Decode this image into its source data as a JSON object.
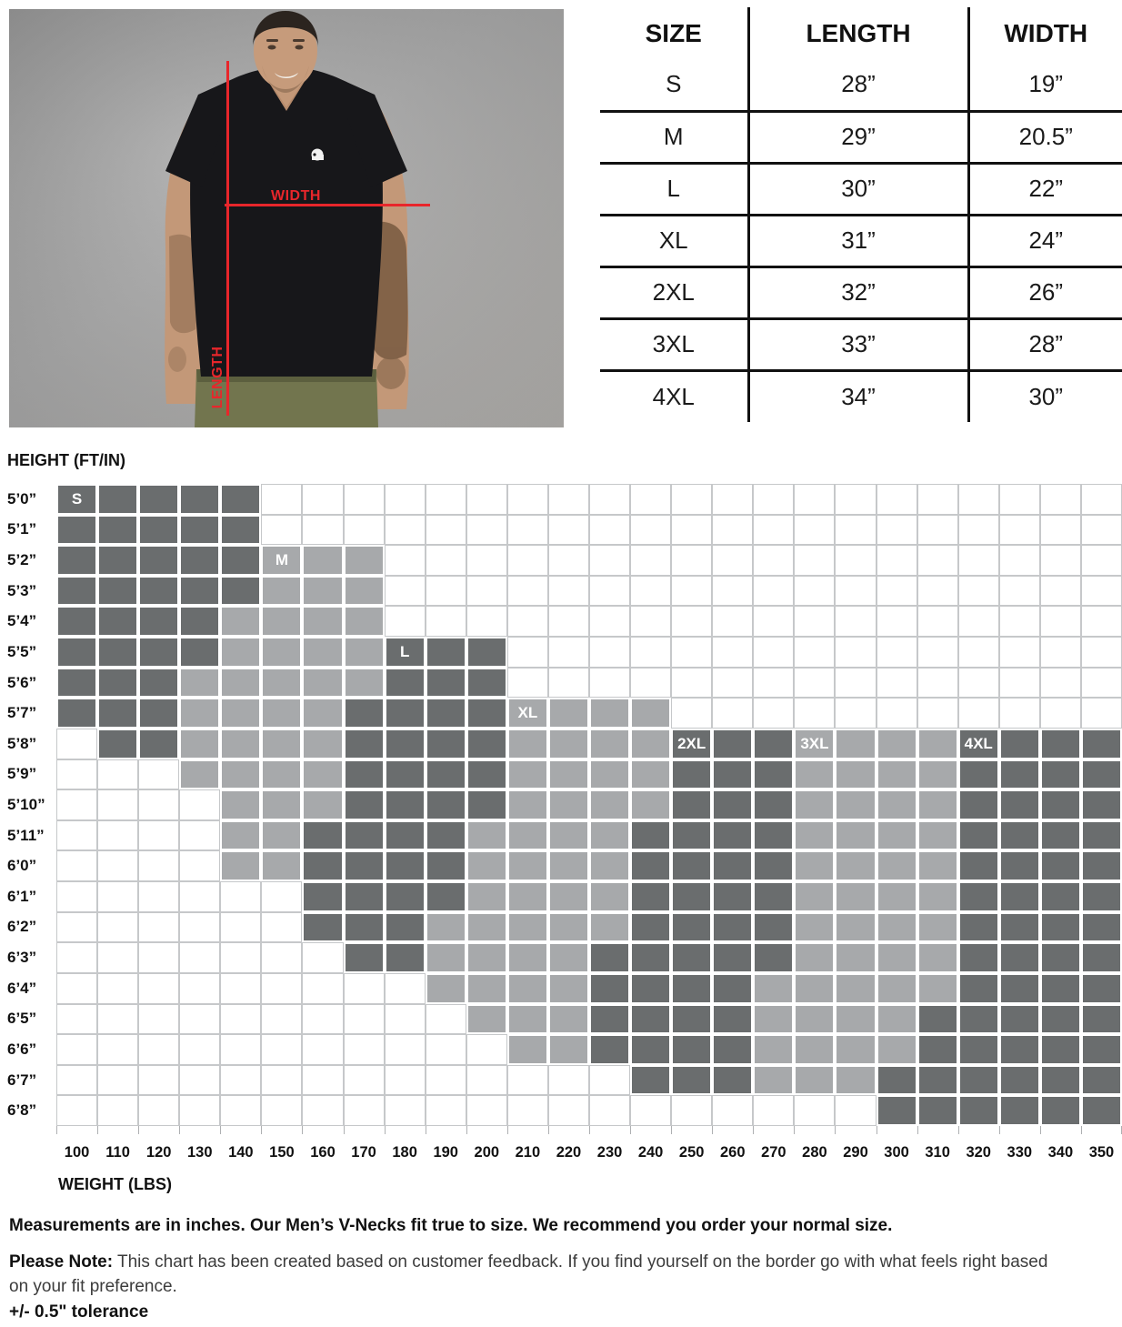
{
  "photo": {
    "width_label": "WIDTH",
    "length_label": "LENGTH",
    "accent_color": "#e8262b"
  },
  "size_table": {
    "headers": [
      "SIZE",
      "LENGTH",
      "WIDTH"
    ],
    "rows": [
      [
        "S",
        "28”",
        "19”"
      ],
      [
        "M",
        "29”",
        "20.5”"
      ],
      [
        "L",
        "30”",
        "22”"
      ],
      [
        "XL",
        "31”",
        "24”"
      ],
      [
        "2XL",
        "32”",
        "26”"
      ],
      [
        "3XL",
        "33”",
        "28”"
      ],
      [
        "4XL",
        "34”",
        "30”"
      ]
    ]
  },
  "chart_data": {
    "type": "heatmap",
    "y_axis_title": "HEIGHT (FT/IN)",
    "x_axis_title": "WEIGHT (LBS)",
    "heights": [
      "5’0”",
      "5’1”",
      "5’2”",
      "5’3”",
      "5’4”",
      "5’5”",
      "5’6”",
      "5’7”",
      "5’8”",
      "5’9”",
      "5’10”",
      "5’11”",
      "6’0”",
      "6’1”",
      "6’2”",
      "6’3”",
      "6’4”",
      "6’5”",
      "6’6”",
      "6’7”",
      "6’8”"
    ],
    "weights": [
      100,
      110,
      120,
      130,
      140,
      150,
      160,
      170,
      180,
      190,
      200,
      210,
      220,
      230,
      240,
      250,
      260,
      270,
      280,
      290,
      300,
      310,
      320,
      330,
      340,
      350
    ],
    "cell_colors": {
      "D": "#6a6d6e",
      "L": "#a7a9ab",
      "W": "#ffffff"
    },
    "grid_line_color": "#c6c8ca",
    "legend": "D = solid size zone (dark gray), L = border zone (light gray), . = not recommended (white)",
    "rows": [
      "DDDDD.....................",
      "DDDDD.....................",
      "DDDDDLLL..................",
      "DDDDDLLL..................",
      "DDDDLLLL..................",
      "DDDDLLLLDDD...............",
      "DDDLLLLLDDD...............",
      "DDDLLLLDDDDLLLL...........",
      ".DDLLLLDDDDLLLLDDDLLLLDDDD",
      "...LLLLDDDDLLLLDDDLLLLDDDD",
      "....LLLDDDDLLLLDDDLLLLDDDD",
      "....LLDDDDLLLLDDDDLLLLDDDD",
      "....LLDDDDLLLLDDDDLLLLDDDD",
      "......DDDDLLLLDDDDLLLLDDDD",
      "......DDDLLLLLDDDDLLLLDDDD",
      ".......DDLLLLDDDDDLLLLDDDD",
      ".........LLLLDDDDLLLLLDDDD",
      "..........LLLDDDDLLLLDDDDD",
      "...........LLDDDDLLLLDDDDD",
      "..............DDDLLLDDDDDD",
      "....................DDDDDD"
    ],
    "size_labels": [
      {
        "text": "S",
        "row": 0,
        "col": 0
      },
      {
        "text": "M",
        "row": 2,
        "col": 5
      },
      {
        "text": "L",
        "row": 5,
        "col": 8
      },
      {
        "text": "XL",
        "row": 7,
        "col": 11
      },
      {
        "text": "2XL",
        "row": 8,
        "col": 15
      },
      {
        "text": "3XL",
        "row": 8,
        "col": 18
      },
      {
        "text": "4XL",
        "row": 8,
        "col": 22
      }
    ]
  },
  "notes": {
    "line1": "Measurements are in inches. Our Men’s V-Necks fit true to size. We recommend you order your normal size.",
    "note_label": "Please Note:",
    "note_body": " This chart has been created based on customer feedback. If you find yourself on the border go with what feels right based on your fit preference.",
    "tolerance": "+/- 0.5\" tolerance"
  }
}
